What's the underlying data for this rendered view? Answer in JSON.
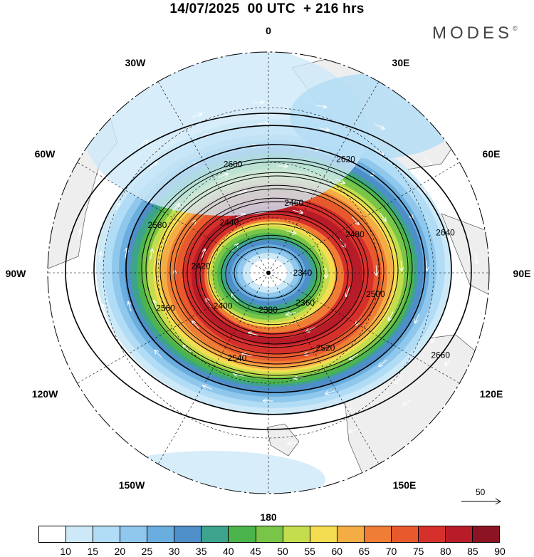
{
  "title": "14/07/2025  00 UTC  + 216 hrs",
  "brand": "MODES",
  "brand_mark": "©",
  "longitude_labels": {
    "0": "0",
    "30E": "30E",
    "60E": "60E",
    "90E": "90E",
    "120E": "120E",
    "150E": "150E",
    "180": "180",
    "150W": "150W",
    "120W": "120W",
    "90W": "90W",
    "60W": "60W",
    "30W": "30W"
  },
  "contours": [
    {
      "label": "2340",
      "ring": 0
    },
    {
      "label": "2360",
      "ring": 1
    },
    {
      "label": "2380",
      "ring": 1
    },
    {
      "label": "2400",
      "ring": 2
    },
    {
      "label": "2420",
      "ring": 3
    },
    {
      "label": "2440",
      "ring": 3
    },
    {
      "label": "2460",
      "ring": 4
    },
    {
      "label": "2480",
      "ring": 4
    },
    {
      "label": "2500",
      "ring": 5
    },
    {
      "label": "2520",
      "ring": 5
    },
    {
      "label": "2540",
      "ring": 6
    },
    {
      "label": "2560",
      "ring": 6
    },
    {
      "label": "2580",
      "ring": 7
    },
    {
      "label": "2600",
      "ring": 7
    },
    {
      "label": "2620",
      "ring": 8
    },
    {
      "label": "2640",
      "ring": 9
    },
    {
      "label": "2660",
      "ring": 10
    }
  ],
  "wind_scale": {
    "values": [
      "10",
      "15",
      "20",
      "25",
      "30",
      "35",
      "40",
      "45",
      "50",
      "55",
      "60",
      "65",
      "70",
      "75",
      "80",
      "85",
      "90"
    ],
    "colors": [
      "#ffffff",
      "#cde9f8",
      "#b1dcf5",
      "#8fc8ec",
      "#6aaedf",
      "#4e8fc9",
      "#3ea38d",
      "#4cb44c",
      "#79c547",
      "#c3dd4c",
      "#f5dd52",
      "#f4ad45",
      "#ef7d35",
      "#e85a2e",
      "#d6302c",
      "#b81c28",
      "#8c1321"
    ]
  },
  "vector_reference": {
    "value": "50"
  },
  "land_color": "#eeeeee"
}
